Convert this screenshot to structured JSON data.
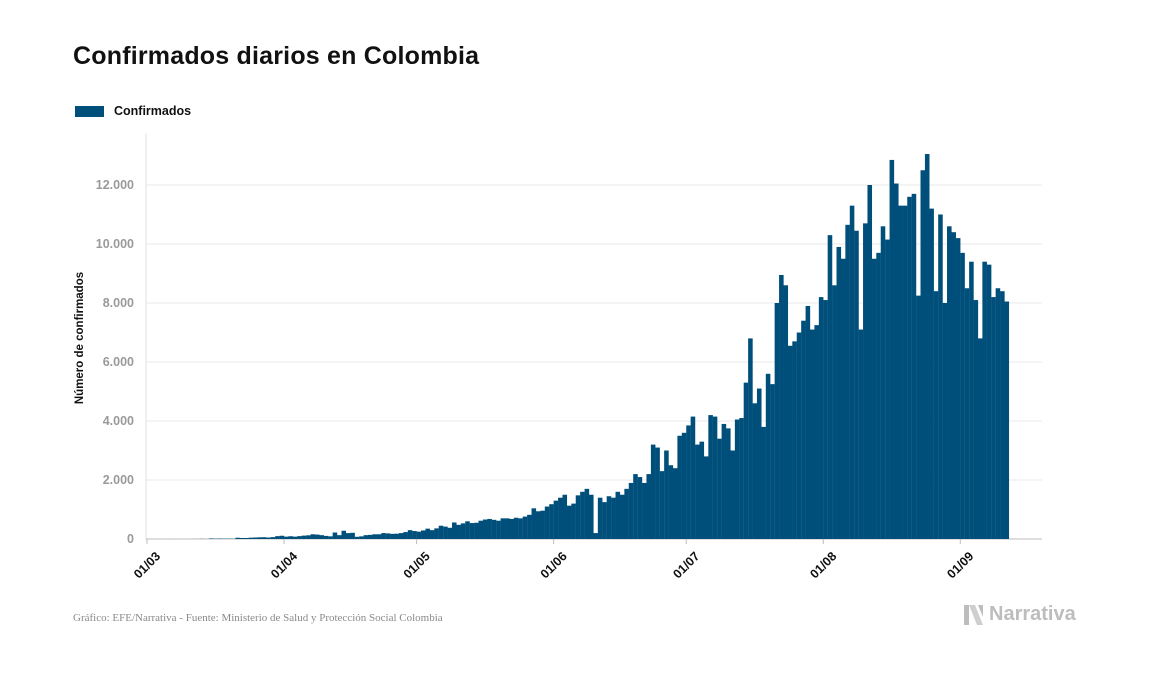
{
  "title": "Confirmados diarios en Colombia",
  "legend": {
    "label": "Confirmados",
    "color": "#004f7b"
  },
  "source": "Gráfico: EFE/Narrativa - Fuente: Ministerio de Salud y Protección Social Colombia",
  "brand": "Narrativa",
  "brand_icon": "narrativa-logo-icon",
  "chart_data": {
    "type": "bar",
    "title": "Confirmados diarios en Colombia",
    "xlabel": "",
    "ylabel": "Número de confirmados",
    "ylim": [
      0,
      13500
    ],
    "yticks": [
      0,
      2000,
      4000,
      6000,
      8000,
      10000,
      12000
    ],
    "ytick_labels": [
      "0",
      "2.000",
      "4.000",
      "6.000",
      "8.000",
      "10.000",
      "12.000"
    ],
    "xticks": [
      {
        "date": "2020-03-01",
        "label": "01/03"
      },
      {
        "date": "2020-04-01",
        "label": "01/04"
      },
      {
        "date": "2020-05-01",
        "label": "01/05"
      },
      {
        "date": "2020-06-01",
        "label": "01/06"
      },
      {
        "date": "2020-07-01",
        "label": "01/07"
      },
      {
        "date": "2020-08-01",
        "label": "01/08"
      },
      {
        "date": "2020-09-01",
        "label": "01/09"
      }
    ],
    "grid": true,
    "legend_position": "top-left",
    "series": [
      {
        "name": "Confirmados",
        "color": "#004f7b",
        "start_date": "2020-03-06",
        "values": [
          1,
          0,
          0,
          0,
          0,
          1,
          2,
          5,
          1,
          18,
          12,
          14,
          12,
          12,
          10,
          42,
          35,
          35,
          45,
          50,
          58,
          60,
          50,
          64,
          97,
          110,
          80,
          94,
          80,
          98,
          115,
          125,
          160,
          150,
          130,
          105,
          90,
          220,
          130,
          280,
          200,
          210,
          75,
          90,
          130,
          140,
          160,
          160,
          200,
          190,
          175,
          180,
          200,
          235,
          300,
          270,
          250,
          290,
          350,
          300,
          360,
          450,
          420,
          380,
          560,
          480,
          530,
          600,
          540,
          550,
          620,
          660,
          680,
          650,
          620,
          700,
          700,
          680,
          720,
          700,
          760,
          820,
          1040,
          940,
          960,
          1100,
          1180,
          1300,
          1400,
          1500,
          1130,
          1200,
          1480,
          1600,
          1700,
          1500,
          200,
          1400,
          1250,
          1450,
          1400,
          1600,
          1500,
          1700,
          1900,
          2200,
          2100,
          1900,
          2200,
          3200,
          3100,
          2300,
          3000,
          2500,
          2400,
          3500,
          3600,
          3850,
          4150,
          3200,
          3300,
          2800,
          4200,
          4150,
          3400,
          3900,
          3750,
          3000,
          4050,
          4100,
          5300,
          6800,
          4600,
          5100,
          3800,
          5600,
          5250,
          8000,
          8950,
          8600,
          6550,
          6700,
          7000,
          7400,
          7900,
          7100,
          7250,
          8200,
          8100,
          10300,
          8600,
          9900,
          9500,
          10650,
          11300,
          10450,
          7100,
          10700,
          12000,
          9500,
          9700,
          10600,
          10150,
          12850,
          12050,
          11300,
          11300,
          11600,
          11700,
          8250,
          12500,
          13050,
          11200,
          8400,
          11000,
          8000,
          10600,
          10400,
          10200,
          9700,
          8500,
          9400,
          8100,
          6800,
          9400,
          9300,
          8200,
          8500,
          8400,
          8050
        ]
      }
    ]
  }
}
